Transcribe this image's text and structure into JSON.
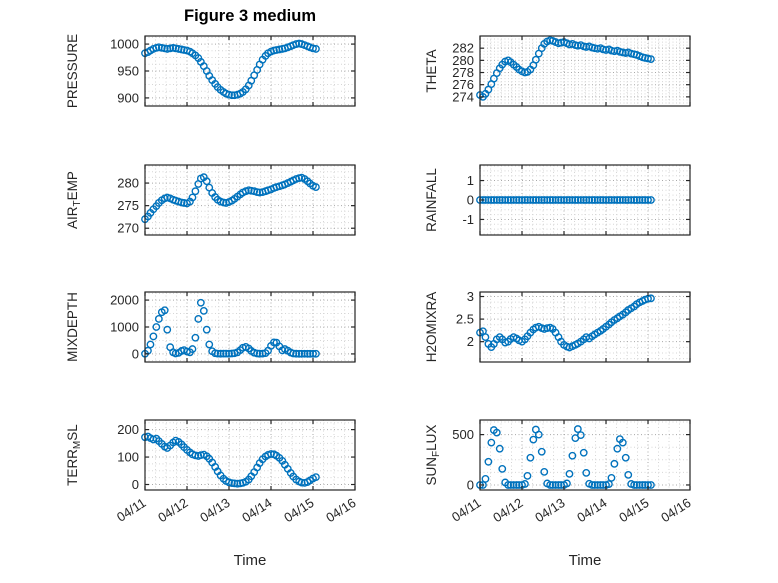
{
  "figure": {
    "title": "Figure 3 medium",
    "background": "#ffffff",
    "axes_color": "#262626",
    "grid_style": "dotted"
  },
  "chart_data": {
    "type": "scatter",
    "title": "Figure 3 medium",
    "xlabel": "Time",
    "marker": "o",
    "marker_color": "#0072BD",
    "grid": "dotted major+minor",
    "layout": "4 rows x 2 columns",
    "x_unit": "days since 04/11 00:00",
    "xlim": [
      0,
      5
    ],
    "xtick_values": [
      0,
      1,
      2,
      3,
      4,
      5
    ],
    "xtick_labels": [
      "04/11",
      "04/12",
      "04/13",
      "04/14",
      "04/15",
      "04/16"
    ],
    "x": [
      0,
      0.07,
      0.13,
      0.2,
      0.27,
      0.33,
      0.4,
      0.47,
      0.53,
      0.6,
      0.67,
      0.73,
      0.8,
      0.87,
      0.93,
      1.0,
      1.07,
      1.13,
      1.2,
      1.27,
      1.33,
      1.4,
      1.47,
      1.53,
      1.6,
      1.67,
      1.73,
      1.8,
      1.87,
      1.93,
      2.0,
      2.07,
      2.13,
      2.2,
      2.27,
      2.33,
      2.4,
      2.47,
      2.53,
      2.6,
      2.67,
      2.73,
      2.8,
      2.87,
      2.93,
      3.0,
      3.07,
      3.13,
      3.2,
      3.27,
      3.33,
      3.4,
      3.47,
      3.53,
      3.6,
      3.67,
      3.73,
      3.8,
      3.87,
      3.93,
      4.0,
      4.07
    ],
    "charts": [
      {
        "ylabel": "PRESSURE",
        "yticks": [
          900,
          950,
          1000
        ],
        "ylim": [
          885,
          1015
        ],
        "y": [
          983,
          985,
          988,
          991,
          993,
          994,
          993,
          992,
          991,
          992,
          993,
          992,
          991,
          990,
          989,
          988,
          986,
          983,
          979,
          974,
          967,
          959,
          950,
          941,
          933,
          926,
          920,
          915,
          911,
          908,
          906,
          905,
          905,
          906,
          908,
          911,
          916,
          923,
          932,
          942,
          952,
          962,
          971,
          978,
          983,
          986,
          988,
          989,
          990,
          991,
          992,
          994,
          996,
          998,
          1000,
          1001,
          1000,
          998,
          996,
          994,
          992,
          991
        ]
      },
      {
        "ylabel": "THETA",
        "yticks": [
          274,
          276,
          278,
          280,
          282
        ],
        "ylim": [
          272.5,
          284
        ],
        "y": [
          274.3,
          274.0,
          274.5,
          275.2,
          276.1,
          277.0,
          277.9,
          278.7,
          279.3,
          279.8,
          280.0,
          279.7,
          279.3,
          278.9,
          278.5,
          278.2,
          278.0,
          278.1,
          278.5,
          279.2,
          280.1,
          281.1,
          282.0,
          282.7,
          283.1,
          283.3,
          283.2,
          283.0,
          282.8,
          282.9,
          283.0,
          282.8,
          282.6,
          282.7,
          282.5,
          282.4,
          282.5,
          282.3,
          282.2,
          282.3,
          282.1,
          282.0,
          281.9,
          282.0,
          281.8,
          281.7,
          281.8,
          281.6,
          281.5,
          281.6,
          281.4,
          281.3,
          281.2,
          281.3,
          281.1,
          281.0,
          280.9,
          280.7,
          280.5,
          280.4,
          280.3,
          280.2
        ]
      },
      {
        "ylabel": "AIR_TEMP",
        "yticks": [
          270,
          275,
          280
        ],
        "ylim": [
          268.5,
          284
        ],
        "y": [
          272.0,
          272.6,
          273.4,
          274.2,
          274.9,
          275.6,
          276.2,
          276.6,
          276.8,
          276.6,
          276.3,
          276.1,
          275.9,
          275.7,
          275.6,
          275.5,
          275.9,
          276.8,
          278.2,
          279.8,
          281.0,
          281.3,
          280.4,
          279.0,
          277.8,
          276.9,
          276.3,
          275.9,
          275.7,
          275.6,
          275.8,
          276.1,
          276.5,
          277.0,
          277.5,
          277.9,
          278.2,
          278.4,
          278.3,
          278.2,
          278.0,
          277.9,
          278.0,
          278.2,
          278.4,
          278.6,
          278.9,
          279.1,
          279.3,
          279.5,
          279.7,
          280.0,
          280.3,
          280.6,
          280.9,
          281.1,
          281.2,
          280.9,
          280.4,
          279.9,
          279.4,
          279.1
        ]
      },
      {
        "ylabel": "RAINFALL",
        "yticks": [
          -1,
          0,
          1
        ],
        "ylim": [
          -1.8,
          1.8
        ],
        "y": [
          0,
          0,
          0,
          0,
          0,
          0,
          0,
          0,
          0,
          0,
          0,
          0,
          0,
          0,
          0,
          0,
          0,
          0,
          0,
          0,
          0,
          0,
          0,
          0,
          0,
          0,
          0,
          0,
          0,
          0,
          0,
          0,
          0,
          0,
          0,
          0,
          0,
          0,
          0,
          0,
          0,
          0,
          0,
          0,
          0,
          0,
          0,
          0,
          0,
          0,
          0,
          0,
          0,
          0,
          0,
          0,
          0,
          0,
          0,
          0,
          0,
          0
        ]
      },
      {
        "ylabel": "MIXDEPTH",
        "yticks": [
          0,
          1000,
          2000
        ],
        "ylim": [
          -300,
          2300
        ],
        "y": [
          5,
          120,
          350,
          650,
          1000,
          1300,
          1550,
          1620,
          900,
          250,
          60,
          15,
          40,
          110,
          140,
          90,
          60,
          180,
          600,
          1300,
          1900,
          1600,
          900,
          350,
          100,
          25,
          10,
          8,
          12,
          10,
          8,
          15,
          25,
          60,
          140,
          230,
          260,
          200,
          110,
          45,
          15,
          8,
          10,
          30,
          120,
          300,
          430,
          420,
          280,
          130,
          180,
          120,
          50,
          15,
          8,
          5,
          5,
          6,
          5,
          5,
          5,
          5
        ]
      },
      {
        "ylabel": "H2OMIXRA",
        "yticks": [
          2,
          2.5,
          3
        ],
        "ylim": [
          1.55,
          3.1
        ],
        "y": [
          2.2,
          2.23,
          2.1,
          1.95,
          1.88,
          1.95,
          2.05,
          2.1,
          2.05,
          1.98,
          2.0,
          2.06,
          2.1,
          2.07,
          2.03,
          2.0,
          2.05,
          2.12,
          2.2,
          2.27,
          2.31,
          2.33,
          2.3,
          2.28,
          2.3,
          2.31,
          2.28,
          2.2,
          2.1,
          2.0,
          1.93,
          1.89,
          1.87,
          1.9,
          1.93,
          1.96,
          2.0,
          2.05,
          2.1,
          2.07,
          2.12,
          2.16,
          2.2,
          2.24,
          2.28,
          2.33,
          2.38,
          2.43,
          2.48,
          2.52,
          2.56,
          2.6,
          2.65,
          2.7,
          2.74,
          2.78,
          2.83,
          2.87,
          2.9,
          2.93,
          2.95,
          2.96
        ]
      },
      {
        "ylabel": "TERR_MSL",
        "yticks": [
          0,
          100,
          200
        ],
        "ylim": [
          -20,
          235
        ],
        "y": [
          172,
          175,
          169,
          164,
          167,
          158,
          148,
          138,
          133,
          142,
          153,
          160,
          155,
          146,
          136,
          126,
          117,
          110,
          106,
          104,
          107,
          109,
          103,
          94,
          80,
          64,
          48,
          33,
          21,
          13,
          8,
          5,
          4,
          3,
          4,
          6,
          10,
          18,
          30,
          45,
          62,
          78,
          92,
          102,
          108,
          111,
          110,
          105,
          97,
          86,
          72,
          57,
          42,
          29,
          18,
          11,
          7,
          6,
          9,
          15,
          22,
          27
        ]
      },
      {
        "ylabel": "SUN_FLUX",
        "yticks": [
          0,
          500
        ],
        "ylim": [
          -50,
          645
        ],
        "y": [
          0,
          0,
          60,
          230,
          420,
          545,
          520,
          360,
          160,
          25,
          0,
          0,
          0,
          0,
          0,
          0,
          10,
          90,
          270,
          450,
          550,
          500,
          330,
          130,
          15,
          0,
          0,
          0,
          0,
          0,
          0,
          15,
          110,
          290,
          465,
          555,
          495,
          320,
          120,
          12,
          0,
          0,
          0,
          0,
          0,
          0,
          8,
          70,
          210,
          360,
          455,
          420,
          270,
          100,
          10,
          0,
          0,
          0,
          0,
          0,
          0,
          0
        ]
      }
    ]
  }
}
